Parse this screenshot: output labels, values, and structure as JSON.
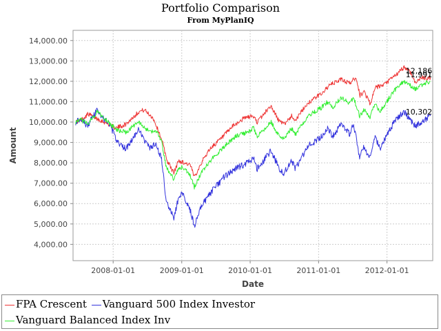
{
  "chart_data": {
    "type": "line",
    "title": "Portfolio Comparison",
    "subtitle": "From MyPlanIQ",
    "xlabel": "Date",
    "ylabel": "Amount",
    "x_range": [
      "2007-06-01",
      "2012-09-01"
    ],
    "ylim": [
      3200,
      14500
    ],
    "x_ticks": [
      "2008-01-01",
      "2009-01-01",
      "2010-01-01",
      "2011-01-01",
      "2012-01-01"
    ],
    "y_ticks": [
      4000,
      5000,
      6000,
      7000,
      8000,
      9000,
      10000,
      11000,
      12000,
      13000,
      14000
    ],
    "y_tick_labels": [
      "4,000.00",
      "5,000.00",
      "6,000.00",
      "7,000.00",
      "8,000.00",
      "9,000.00",
      "10,000.00",
      "11,000.00",
      "12,000.00",
      "13,000.00",
      "14,000.00"
    ],
    "grid": true,
    "legend_position": "bottom",
    "series": [
      {
        "name": "FPA Crescent",
        "color": "#ee3333",
        "end_label": "12,186",
        "points": [
          [
            "2007-06-15",
            10000
          ],
          [
            "2007-07-15",
            10100
          ],
          [
            "2007-08-20",
            10400
          ],
          [
            "2007-10-01",
            10200
          ],
          [
            "2007-11-15",
            10000
          ],
          [
            "2008-01-15",
            9700
          ],
          [
            "2008-03-10",
            9900
          ],
          [
            "2008-05-15",
            10500
          ],
          [
            "2008-06-15",
            10600
          ],
          [
            "2008-08-01",
            10200
          ],
          [
            "2008-09-15",
            9200
          ],
          [
            "2008-10-15",
            8100
          ],
          [
            "2008-11-20",
            7500
          ],
          [
            "2008-12-15",
            8100
          ],
          [
            "2009-01-15",
            8000
          ],
          [
            "2009-02-15",
            7900
          ],
          [
            "2009-03-09",
            7300
          ],
          [
            "2009-04-15",
            8000
          ],
          [
            "2009-06-01",
            8700
          ],
          [
            "2009-08-01",
            9200
          ],
          [
            "2009-10-01",
            9800
          ],
          [
            "2009-12-01",
            10200
          ],
          [
            "2010-01-15",
            10300
          ],
          [
            "2010-02-08",
            10000
          ],
          [
            "2010-04-20",
            10800
          ],
          [
            "2010-06-05",
            10050
          ],
          [
            "2010-07-01",
            9900
          ],
          [
            "2010-08-10",
            10300
          ],
          [
            "2010-09-01",
            10100
          ],
          [
            "2010-11-01",
            10900
          ],
          [
            "2011-01-15",
            11400
          ],
          [
            "2011-03-01",
            11800
          ],
          [
            "2011-05-01",
            12100
          ],
          [
            "2011-06-15",
            11900
          ],
          [
            "2011-07-20",
            12200
          ],
          [
            "2011-08-10",
            11300
          ],
          [
            "2011-09-01",
            11500
          ],
          [
            "2011-10-04",
            10900
          ],
          [
            "2011-11-01",
            11700
          ],
          [
            "2011-12-15",
            11800
          ],
          [
            "2012-01-20",
            12100
          ],
          [
            "2012-03-01",
            12400
          ],
          [
            "2012-04-01",
            12700
          ],
          [
            "2012-05-01",
            12500
          ],
          [
            "2012-06-04",
            11900
          ],
          [
            "2012-07-01",
            12200
          ],
          [
            "2012-08-01",
            12150
          ],
          [
            "2012-08-20",
            12186
          ]
        ]
      },
      {
        "name": "Vanguard 500 Index Investor",
        "color": "#3333dd",
        "end_label": "10,302",
        "points": [
          [
            "2007-06-15",
            10000
          ],
          [
            "2007-07-15",
            10200
          ],
          [
            "2007-08-16",
            9800
          ],
          [
            "2007-10-09",
            10600
          ],
          [
            "2007-11-15",
            10100
          ],
          [
            "2007-12-15",
            9900
          ],
          [
            "2008-01-22",
            9000
          ],
          [
            "2008-03-10",
            8700
          ],
          [
            "2008-05-15",
            9600
          ],
          [
            "2008-07-15",
            8700
          ],
          [
            "2008-08-15",
            8900
          ],
          [
            "2008-09-15",
            8200
          ],
          [
            "2008-10-10",
            6100
          ],
          [
            "2008-11-20",
            5300
          ],
          [
            "2008-12-15",
            6300
          ],
          [
            "2009-01-06",
            6500
          ],
          [
            "2009-02-15",
            5700
          ],
          [
            "2009-03-09",
            4900
          ],
          [
            "2009-04-15",
            5900
          ],
          [
            "2009-06-10",
            6600
          ],
          [
            "2009-08-15",
            7300
          ],
          [
            "2009-10-15",
            7700
          ],
          [
            "2009-12-15",
            8000
          ],
          [
            "2010-01-19",
            8200
          ],
          [
            "2010-02-08",
            7700
          ],
          [
            "2010-04-23",
            8600
          ],
          [
            "2010-06-05",
            7700
          ],
          [
            "2010-07-02",
            7500
          ],
          [
            "2010-08-10",
            8100
          ],
          [
            "2010-08-31",
            7700
          ],
          [
            "2010-11-05",
            8800
          ],
          [
            "2011-01-15",
            9300
          ],
          [
            "2011-02-18",
            9700
          ],
          [
            "2011-03-16",
            9300
          ],
          [
            "2011-05-01",
            9900
          ],
          [
            "2011-06-16",
            9400
          ],
          [
            "2011-07-07",
            9900
          ],
          [
            "2011-08-08",
            8300
          ],
          [
            "2011-09-01",
            8800
          ],
          [
            "2011-10-03",
            8200
          ],
          [
            "2011-10-27",
            9300
          ],
          [
            "2011-11-25",
            8700
          ],
          [
            "2011-12-30",
            9300
          ],
          [
            "2012-02-15",
            10100
          ],
          [
            "2012-04-01",
            10500
          ],
          [
            "2012-06-01",
            9800
          ],
          [
            "2012-07-01",
            10000
          ],
          [
            "2012-08-01",
            10200
          ],
          [
            "2012-08-20",
            10302
          ]
        ]
      },
      {
        "name": "Vanguard Balanced Index Inv",
        "color": "#33ee33",
        "end_label": "11,991",
        "points": [
          [
            "2007-06-15",
            10000
          ],
          [
            "2007-07-15",
            10100
          ],
          [
            "2007-08-16",
            9900
          ],
          [
            "2007-10-09",
            10500
          ],
          [
            "2007-11-15",
            10200
          ],
          [
            "2008-01-22",
            9600
          ],
          [
            "2008-03-10",
            9500
          ],
          [
            "2008-05-15",
            10000
          ],
          [
            "2008-07-15",
            9500
          ],
          [
            "2008-08-15",
            9600
          ],
          [
            "2008-09-15",
            9100
          ],
          [
            "2008-10-10",
            7800
          ],
          [
            "2008-11-20",
            7200
          ],
          [
            "2008-12-15",
            7700
          ],
          [
            "2009-01-06",
            7800
          ],
          [
            "2009-02-15",
            7400
          ],
          [
            "2009-03-09",
            6800
          ],
          [
            "2009-04-15",
            7500
          ],
          [
            "2009-06-10",
            8200
          ],
          [
            "2009-08-15",
            8800
          ],
          [
            "2009-10-15",
            9300
          ],
          [
            "2009-12-15",
            9500
          ],
          [
            "2010-01-19",
            9700
          ],
          [
            "2010-02-08",
            9300
          ],
          [
            "2010-04-23",
            10000
          ],
          [
            "2010-06-05",
            9300
          ],
          [
            "2010-07-02",
            9200
          ],
          [
            "2010-08-10",
            9700
          ],
          [
            "2010-08-31",
            9400
          ],
          [
            "2010-11-05",
            10300
          ],
          [
            "2011-01-15",
            10700
          ],
          [
            "2011-02-18",
            11000
          ],
          [
            "2011-03-16",
            10700
          ],
          [
            "2011-05-01",
            11200
          ],
          [
            "2011-06-16",
            10900
          ],
          [
            "2011-07-07",
            11200
          ],
          [
            "2011-08-08",
            10300
          ],
          [
            "2011-09-01",
            10600
          ],
          [
            "2011-10-03",
            10200
          ],
          [
            "2011-10-27",
            10900
          ],
          [
            "2011-11-25",
            10500
          ],
          [
            "2011-12-30",
            11000
          ],
          [
            "2012-02-15",
            11600
          ],
          [
            "2012-04-01",
            12000
          ],
          [
            "2012-06-01",
            11600
          ],
          [
            "2012-07-01",
            11800
          ],
          [
            "2012-08-01",
            11950
          ],
          [
            "2012-08-20",
            11991
          ]
        ]
      }
    ]
  }
}
